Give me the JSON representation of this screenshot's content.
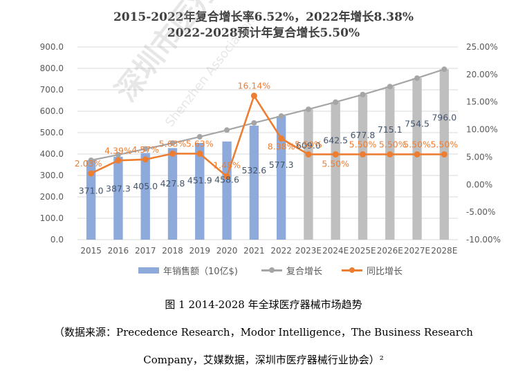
{
  "chart_title_line1": "2015-2022年复合增长率6.52%，2022年增长8.38%",
  "chart_title_line2": "2022-2028预计年复合增长5.50%",
  "figure_caption": "图 1 2014-2028 年全球医疗器械市场趋势",
  "source_line1": "（数据来源：Precedence Research，Modor Intelligence，The Business Research",
  "source_line2": "Company，艾媒数据，深圳市医疗器械行业协会）²",
  "watermark_text": "深圳市医疗器",
  "watermark_sub": "Shenzhen Association",
  "colors": {
    "bar_actual": "#8eaadb",
    "bar_forecast": "#bfbfbf",
    "cagr_line": "#a5a5a5",
    "yoy_line": "#ed7d31",
    "yoy_label": "#ed7d31",
    "value_label": "#44546a",
    "axis_text": "#595959",
    "gridline": "#d9d9d9"
  },
  "chart_data": {
    "type": "bar",
    "categories": [
      "2015",
      "2016",
      "2017",
      "2018",
      "2019",
      "2020",
      "2021",
      "2022",
      "2023E",
      "2024E",
      "2025E",
      "2026E",
      "2027E",
      "2028E"
    ],
    "forecast_from_index": 8,
    "series": [
      {
        "name": "年销售额（10亿$)",
        "type": "bar",
        "axis": "left",
        "values": [
          371.0,
          387.3,
          405.0,
          427.8,
          451.9,
          458.6,
          532.6,
          577.3,
          609.0,
          642.5,
          677.8,
          715.1,
          754.5,
          796.0
        ],
        "labels": [
          "371.0",
          "387.3",
          "405.0",
          "427.8",
          "451.9",
          "458.6",
          "532.6",
          "577.3",
          "609.0",
          "642.5",
          "677.8",
          "715.1",
          "754.5",
          "796.0"
        ]
      },
      {
        "name": "复合增长",
        "type": "line",
        "axis": "left",
        "values": [
          371.0,
          396.6,
          423.6,
          451.2,
          480.6,
          511.9,
          545.3,
          577.3,
          609.0,
          642.5,
          677.8,
          715.1,
          754.5,
          796.0
        ]
      },
      {
        "name": "同比增长",
        "type": "line",
        "axis": "right",
        "values": [
          2.03,
          4.39,
          4.57,
          5.63,
          5.63,
          1.48,
          16.14,
          8.38,
          5.5,
          5.5,
          5.5,
          5.5,
          5.5,
          5.5
        ],
        "labels": [
          "2.03%",
          "4.39%",
          "4.57%",
          "5.63%",
          "5.63%",
          "1.48%",
          "16.14%",
          "8.38%",
          "5.50%",
          "5.50%",
          "5.50%",
          "5.50%",
          "5.50%",
          "5.50%"
        ],
        "label_shown": [
          true,
          true,
          true,
          true,
          true,
          true,
          true,
          true,
          true,
          true,
          true,
          true,
          true,
          true
        ]
      }
    ],
    "y_left": {
      "min": 0,
      "max": 900,
      "ticks": [
        "0.0",
        "100.0",
        "200.0",
        "300.0",
        "400.0",
        "500.0",
        "600.0",
        "700.0",
        "800.0",
        "900.0"
      ]
    },
    "y_right": {
      "min": -10,
      "max": 25,
      "ticks": [
        "-10.00%",
        "-5.00%",
        "0.00%",
        "5.00%",
        "10.00%",
        "15.00%",
        "20.00%",
        "25.00%"
      ]
    },
    "grid": true,
    "legend_position": "bottom"
  }
}
